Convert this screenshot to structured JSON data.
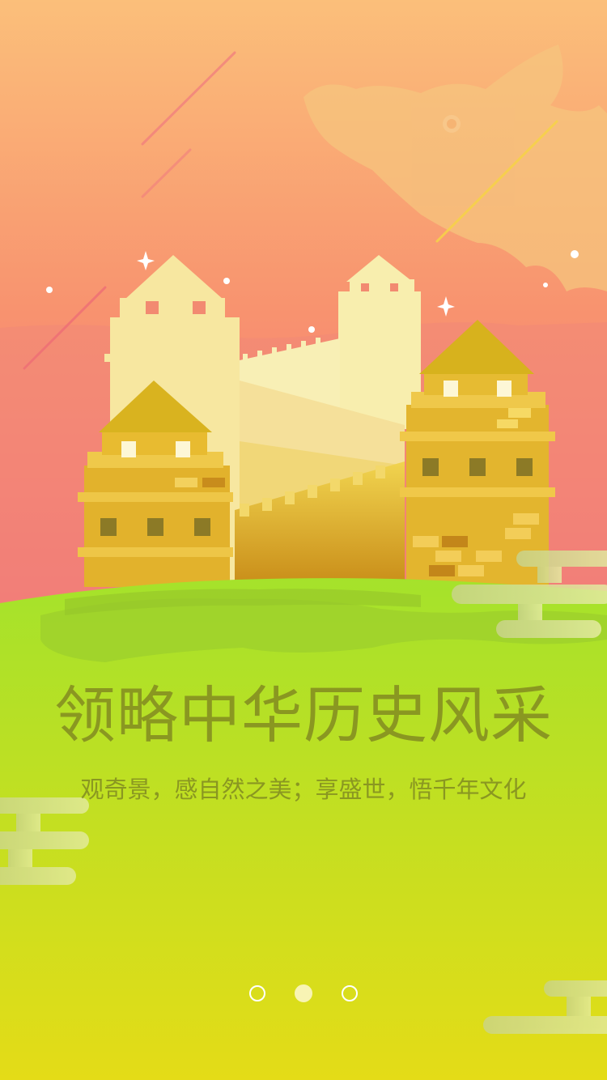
{
  "screen": {
    "title": "领略中华历史风采",
    "subtitle": "观奇景，感自然之美；享盛世，悟千年文化"
  },
  "illustration": {
    "subject": "great-wall",
    "decorations": [
      "dragon",
      "clouds",
      "stars",
      "meteor-streaks"
    ]
  },
  "pager": {
    "total": 3,
    "active_index": 1
  },
  "colors": {
    "sky_top": "#fbbe7a",
    "sky_bottom": "#f47d78",
    "grass_top": "#a6e32a",
    "grass_bottom": "#e2dd18",
    "text": "#8a9721",
    "dot": "#ffffff",
    "dot_active": "#f8f4b4"
  }
}
